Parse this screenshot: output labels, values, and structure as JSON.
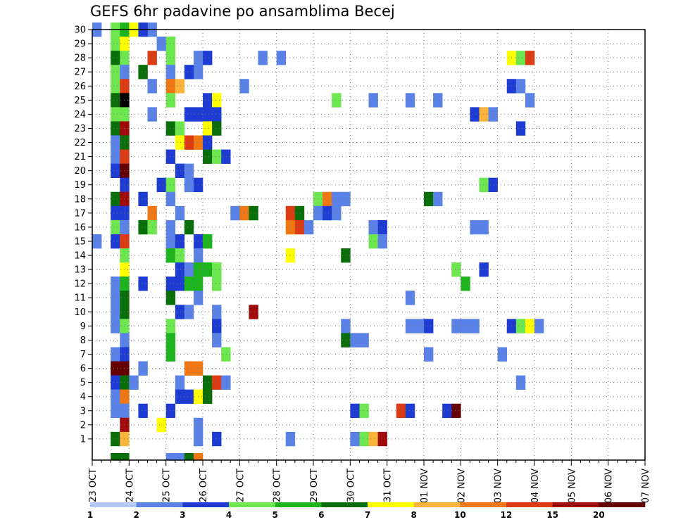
{
  "chart_data": {
    "type": "heatmap",
    "title": "GEFS 6hr padavine po ansamblima Becej",
    "members": [
      1,
      2,
      3,
      4,
      5,
      6,
      7,
      8,
      9,
      10,
      11,
      12,
      13,
      14,
      15,
      16,
      17,
      18,
      19,
      20,
      21,
      22,
      23,
      24,
      25,
      26,
      27,
      28,
      29,
      30
    ],
    "date_labels": [
      "23 OCT",
      "24 OCT",
      "25 OCT",
      "26 OCT",
      "27 OCT",
      "28 OCT",
      "29 OCT",
      "30 OCT",
      "31 OCT",
      "01 NOV",
      "02 NOV",
      "03 NOV",
      "04 NOV",
      "05 NOV",
      "06 NOV",
      "07 NOV"
    ],
    "time_steps_per_day": 4,
    "grid": true,
    "legend_placement": "bottom",
    "color_levels": [
      1,
      2,
      3,
      4,
      5,
      6,
      7,
      8,
      10,
      12,
      15,
      20
    ],
    "level_labels": [
      "1",
      "2",
      "3",
      "4",
      "5",
      "6",
      "7",
      "8",
      "10",
      "12",
      "15",
      "20"
    ],
    "colors": [
      "#b4c8f5",
      "#5a82e6",
      "#1e3cd2",
      "#6ee650",
      "#1eb41e",
      "#0a6e0a",
      "#ffff00",
      "#fab43c",
      "#f07814",
      "#dc3c14",
      "#a00a0a",
      "#640000"
    ],
    "cells": [
      [
        30,
        0,
        1
      ],
      [
        30,
        2,
        3
      ],
      [
        30,
        3,
        4
      ],
      [
        30,
        4,
        6
      ],
      [
        30,
        6,
        1
      ],
      [
        30,
        5,
        2
      ],
      [
        29,
        2,
        3
      ],
      [
        29,
        3,
        6
      ],
      [
        29,
        7,
        1
      ],
      [
        29,
        8,
        3
      ],
      [
        28,
        2,
        5
      ],
      [
        28,
        3,
        3
      ],
      [
        28,
        6,
        9
      ],
      [
        28,
        8,
        3
      ],
      [
        28,
        11,
        1
      ],
      [
        28,
        12,
        2
      ],
      [
        28,
        18,
        1
      ],
      [
        28,
        20,
        1
      ],
      [
        28,
        45,
        6
      ],
      [
        28,
        46,
        3
      ],
      [
        28,
        47,
        9
      ],
      [
        27,
        2,
        3
      ],
      [
        27,
        3,
        1
      ],
      [
        27,
        5,
        5
      ],
      [
        27,
        8,
        1
      ],
      [
        27,
        10,
        2
      ],
      [
        27,
        11,
        1
      ],
      [
        26,
        2,
        3
      ],
      [
        26,
        3,
        9
      ],
      [
        26,
        6,
        1
      ],
      [
        26,
        8,
        8
      ],
      [
        26,
        9,
        7
      ],
      [
        26,
        16,
        1
      ],
      [
        26,
        45,
        2
      ],
      [
        26,
        46,
        1
      ],
      [
        25,
        2,
        5
      ],
      [
        25,
        3,
        12
      ],
      [
        25,
        8,
        3
      ],
      [
        25,
        12,
        2
      ],
      [
        25,
        13,
        6
      ],
      [
        25,
        26,
        3
      ],
      [
        25,
        30,
        1
      ],
      [
        25,
        34,
        1
      ],
      [
        25,
        37,
        1
      ],
      [
        25,
        47,
        1
      ],
      [
        24,
        2,
        3
      ],
      [
        24,
        3,
        3
      ],
      [
        24,
        6,
        1
      ],
      [
        24,
        10,
        2
      ],
      [
        24,
        11,
        2
      ],
      [
        24,
        12,
        2
      ],
      [
        24,
        13,
        2
      ],
      [
        24,
        41,
        2
      ],
      [
        24,
        42,
        7
      ],
      [
        24,
        43,
        1
      ],
      [
        23,
        2,
        5
      ],
      [
        23,
        3,
        10
      ],
      [
        23,
        8,
        5
      ],
      [
        23,
        9,
        3
      ],
      [
        23,
        12,
        6
      ],
      [
        23,
        13,
        5
      ],
      [
        23,
        46,
        2
      ],
      [
        22,
        2,
        1
      ],
      [
        22,
        3,
        5
      ],
      [
        22,
        9,
        6
      ],
      [
        22,
        10,
        9
      ],
      [
        22,
        11,
        8
      ],
      [
        22,
        12,
        2
      ],
      [
        21,
        2,
        1
      ],
      [
        21,
        3,
        9
      ],
      [
        21,
        8,
        2
      ],
      [
        21,
        12,
        5
      ],
      [
        21,
        13,
        3
      ],
      [
        21,
        14,
        2
      ],
      [
        20,
        2,
        2
      ],
      [
        20,
        3,
        11
      ],
      [
        20,
        9,
        2
      ],
      [
        20,
        10,
        1
      ],
      [
        19,
        3,
        2
      ],
      [
        19,
        7,
        2
      ],
      [
        19,
        8,
        3
      ],
      [
        19,
        10,
        1
      ],
      [
        19,
        11,
        2
      ],
      [
        19,
        42,
        3
      ],
      [
        19,
        43,
        2
      ],
      [
        18,
        2,
        5
      ],
      [
        18,
        3,
        10
      ],
      [
        18,
        5,
        2
      ],
      [
        18,
        8,
        1
      ],
      [
        18,
        24,
        3
      ],
      [
        18,
        25,
        8
      ],
      [
        18,
        26,
        1
      ],
      [
        18,
        27,
        1
      ],
      [
        18,
        36,
        5
      ],
      [
        18,
        37,
        1
      ],
      [
        17,
        2,
        2
      ],
      [
        17,
        3,
        2
      ],
      [
        17,
        6,
        8
      ],
      [
        17,
        9,
        1
      ],
      [
        17,
        15,
        1
      ],
      [
        17,
        16,
        8
      ],
      [
        17,
        17,
        5
      ],
      [
        17,
        21,
        9
      ],
      [
        17,
        22,
        5
      ],
      [
        17,
        24,
        1
      ],
      [
        17,
        25,
        2
      ],
      [
        17,
        26,
        1
      ],
      [
        16,
        2,
        3
      ],
      [
        16,
        3,
        1
      ],
      [
        16,
        5,
        5
      ],
      [
        16,
        6,
        3
      ],
      [
        16,
        8,
        1
      ],
      [
        16,
        10,
        5
      ],
      [
        16,
        21,
        8
      ],
      [
        16,
        22,
        9
      ],
      [
        16,
        23,
        1
      ],
      [
        16,
        30,
        1
      ],
      [
        16,
        31,
        2
      ],
      [
        16,
        41,
        1
      ],
      [
        16,
        42,
        1
      ],
      [
        15,
        0,
        1
      ],
      [
        15,
        2,
        2
      ],
      [
        15,
        3,
        9
      ],
      [
        15,
        8,
        1
      ],
      [
        15,
        9,
        2
      ],
      [
        15,
        11,
        2
      ],
      [
        15,
        12,
        4
      ],
      [
        15,
        30,
        3
      ],
      [
        15,
        31,
        1
      ],
      [
        14,
        3,
        3
      ],
      [
        14,
        8,
        4
      ],
      [
        14,
        9,
        3
      ],
      [
        14,
        11,
        1
      ],
      [
        14,
        21,
        6
      ],
      [
        14,
        27,
        5
      ],
      [
        13,
        3,
        6
      ],
      [
        13,
        9,
        2
      ],
      [
        13,
        10,
        1
      ],
      [
        13,
        11,
        4
      ],
      [
        13,
        12,
        4
      ],
      [
        13,
        13,
        3
      ],
      [
        13,
        39,
        3
      ],
      [
        13,
        42,
        2
      ],
      [
        12,
        2,
        1
      ],
      [
        12,
        3,
        4
      ],
      [
        12,
        5,
        2
      ],
      [
        12,
        8,
        2
      ],
      [
        12,
        9,
        2
      ],
      [
        12,
        10,
        4
      ],
      [
        12,
        11,
        4
      ],
      [
        12,
        13,
        3
      ],
      [
        12,
        40,
        4
      ],
      [
        11,
        2,
        1
      ],
      [
        11,
        3,
        5
      ],
      [
        11,
        8,
        5
      ],
      [
        11,
        11,
        1
      ],
      [
        11,
        34,
        1
      ],
      [
        10,
        2,
        1
      ],
      [
        10,
        3,
        5
      ],
      [
        10,
        9,
        2
      ],
      [
        10,
        10,
        1
      ],
      [
        10,
        13,
        1
      ],
      [
        10,
        17,
        10
      ],
      [
        9,
        2,
        1
      ],
      [
        9,
        3,
        3
      ],
      [
        9,
        8,
        3
      ],
      [
        9,
        13,
        2
      ],
      [
        9,
        27,
        1
      ],
      [
        9,
        34,
        1
      ],
      [
        9,
        35,
        1
      ],
      [
        9,
        36,
        2
      ],
      [
        9,
        39,
        1
      ],
      [
        9,
        40,
        1
      ],
      [
        9,
        41,
        1
      ],
      [
        9,
        45,
        2
      ],
      [
        9,
        46,
        3
      ],
      [
        9,
        47,
        6
      ],
      [
        9,
        48,
        1
      ],
      [
        8,
        3,
        1
      ],
      [
        8,
        8,
        4
      ],
      [
        8,
        13,
        1
      ],
      [
        8,
        27,
        5
      ],
      [
        8,
        28,
        1
      ],
      [
        8,
        29,
        1
      ],
      [
        7,
        2,
        1
      ],
      [
        7,
        3,
        2
      ],
      [
        7,
        8,
        4
      ],
      [
        7,
        14,
        3
      ],
      [
        7,
        36,
        1
      ],
      [
        7,
        44,
        1
      ],
      [
        6,
        2,
        11
      ],
      [
        6,
        3,
        11
      ],
      [
        6,
        5,
        1
      ],
      [
        6,
        10,
        8
      ],
      [
        6,
        11,
        8
      ],
      [
        5,
        2,
        2
      ],
      [
        5,
        3,
        5
      ],
      [
        5,
        4,
        1
      ],
      [
        5,
        9,
        1
      ],
      [
        5,
        12,
        5
      ],
      [
        5,
        13,
        9
      ],
      [
        5,
        14,
        1
      ],
      [
        5,
        46,
        1
      ],
      [
        4,
        2,
        1
      ],
      [
        4,
        3,
        8
      ],
      [
        4,
        9,
        2
      ],
      [
        4,
        10,
        2
      ],
      [
        4,
        11,
        6
      ],
      [
        4,
        12,
        5
      ],
      [
        3,
        2,
        1
      ],
      [
        3,
        3,
        1
      ],
      [
        3,
        5,
        2
      ],
      [
        3,
        8,
        2
      ],
      [
        3,
        28,
        2
      ],
      [
        3,
        29,
        3
      ],
      [
        3,
        33,
        9
      ],
      [
        3,
        34,
        2
      ],
      [
        3,
        38,
        2
      ],
      [
        3,
        39,
        11
      ],
      [
        2,
        3,
        10
      ],
      [
        2,
        7,
        6
      ],
      [
        2,
        11,
        1
      ],
      [
        1,
        2,
        5
      ],
      [
        1,
        3,
        7
      ],
      [
        1,
        11,
        1
      ],
      [
        1,
        13,
        2
      ],
      [
        1,
        21,
        1
      ],
      [
        1,
        28,
        1
      ],
      [
        1,
        29,
        3
      ],
      [
        1,
        30,
        7
      ],
      [
        1,
        31,
        10
      ],
      [
        0,
        2,
        5
      ],
      [
        0,
        3,
        5
      ],
      [
        0,
        8,
        1
      ],
      [
        0,
        9,
        1
      ],
      [
        0,
        10,
        5
      ],
      [
        0,
        11,
        8
      ]
    ]
  }
}
